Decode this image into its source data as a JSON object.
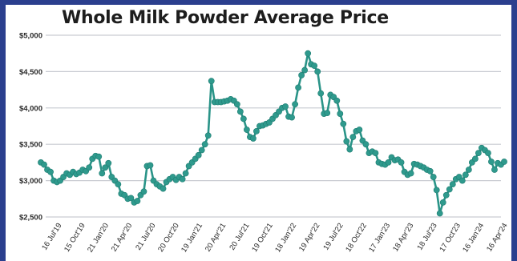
{
  "chart_data": {
    "type": "line",
    "title": "Whole Milk Powder Average Price",
    "xlabel": "",
    "ylabel": "",
    "ylim": [
      2500,
      5000
    ],
    "yticks": [
      "$5,000",
      "$4,500",
      "$4,000",
      "$3,500",
      "$3,000",
      "$2,500"
    ],
    "yticks_values": [
      5000,
      4500,
      4000,
      3500,
      3000,
      2500
    ],
    "xticks": [
      "16 Jul'19",
      "15 Oct'19",
      "21 Jan'20",
      "21 Apr'20",
      "21 Jul'20",
      "20 Oct'20",
      "19 Jan'21",
      "20 Apr'21",
      "20 Jul'21",
      "19 Oct'21",
      "18 Jan'22",
      "19 Apr'22",
      "19 Jul'22",
      "18 Oct'22",
      "17 Jan'23",
      "18 Apr'23",
      "18 Jul'23",
      "17 Oct'23",
      "16 Jan'24",
      "16 Apr'24"
    ],
    "grid": "horizontal",
    "legend": "none",
    "colors": {
      "line": "#2a9488",
      "marker": "#2f9a8d",
      "grid": "#c9ccd2",
      "frame": "#2b3f8e"
    },
    "series": [
      {
        "values": [
          3250,
          3220,
          3150,
          3120,
          3000,
          2980,
          3000,
          3050,
          3100,
          3080,
          3120,
          3090,
          3110,
          3150,
          3130,
          3180,
          3300,
          3340,
          3330,
          3100,
          3180,
          3240,
          3050,
          3000,
          2950,
          2820,
          2800,
          2750,
          2760,
          2700,
          2720,
          2800,
          2850,
          3200,
          3210,
          3000,
          2950,
          2920,
          2890,
          2980,
          3020,
          3050,
          3010,
          3050,
          3020,
          3100,
          3200,
          3250,
          3300,
          3350,
          3420,
          3500,
          3620,
          4370,
          4080,
          4080,
          4080,
          4090,
          4100,
          4120,
          4100,
          4050,
          3950,
          3850,
          3700,
          3600,
          3580,
          3680,
          3750,
          3760,
          3780,
          3800,
          3850,
          3900,
          3950,
          4000,
          4020,
          3880,
          3870,
          4050,
          4280,
          4450,
          4520,
          4750,
          4600,
          4580,
          4500,
          4200,
          3920,
          3930,
          4180,
          4150,
          4100,
          3920,
          3780,
          3540,
          3430,
          3600,
          3680,
          3700,
          3550,
          3500,
          3380,
          3400,
          3380,
          3250,
          3230,
          3220,
          3250,
          3320,
          3280,
          3290,
          3250,
          3120,
          3080,
          3100,
          3230,
          3220,
          3200,
          3180,
          3150,
          3130,
          3050,
          2870,
          2550,
          2700,
          2800,
          2880,
          2950,
          3020,
          3050,
          3000,
          3080,
          3150,
          3250,
          3300,
          3380,
          3450,
          3420,
          3380,
          3260,
          3150,
          3240,
          3220,
          3260
        ]
      }
    ]
  }
}
